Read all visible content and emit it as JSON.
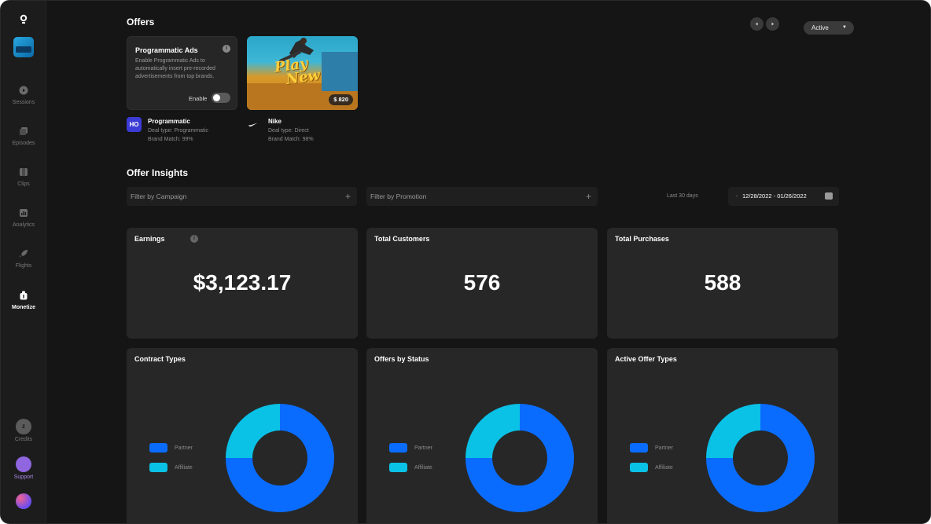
{
  "colors": {
    "partner": "#0a6cff",
    "affiliate": "#0ac1e6",
    "background": "#151515",
    "card": "#272727"
  },
  "sidebar": {
    "items": [
      {
        "label": "Sessions",
        "icon": "play-circle-icon",
        "active": false
      },
      {
        "label": "Episodes",
        "icon": "layers-icon",
        "active": false
      },
      {
        "label": "Clips",
        "icon": "film-icon",
        "active": false
      },
      {
        "label": "Analytics",
        "icon": "bar-chart-icon",
        "active": false
      },
      {
        "label": "Flights",
        "icon": "rocket-icon",
        "active": false
      },
      {
        "label": "Monetize",
        "icon": "money-bag-icon",
        "active": true
      }
    ],
    "credits_label": "Credits",
    "credits_icon_text": "z",
    "support_label": "Support"
  },
  "offers": {
    "title": "Offers",
    "status_select": "Active",
    "programmatic_card": {
      "title": "Programmatic Ads",
      "description": "Enable Programmatic Ads to automatically insert pre-recorded advertisements from top brands.",
      "toggle_label": "Enable",
      "enabled": false
    },
    "nike_card": {
      "image_text_line1": "Play",
      "image_text_line2": "New",
      "price": "$ 820"
    },
    "items": [
      {
        "name": "Programmatic",
        "badge": "HO",
        "deal_type": "Deal type: Programmatic",
        "brand_match": "Brand Match: 99%"
      },
      {
        "name": "Nike",
        "badge": "nike-swoosh-icon",
        "deal_type": "Deal type: Direct",
        "brand_match": "Brand Match: 98%"
      }
    ]
  },
  "insights": {
    "title": "Offer Insights",
    "filter_campaign": "Filter by Campaign",
    "filter_promotion": "Filter by Promotion",
    "range_label": "Last 30 days",
    "date_range": "12/28/2022 - 01/26/2022",
    "stats": [
      {
        "label": "Earnings",
        "value": "$3,123.17"
      },
      {
        "label": "Total Customers",
        "value": "576"
      },
      {
        "label": "Total Purchases",
        "value": "588"
      }
    ]
  },
  "chart_data": [
    {
      "type": "pie",
      "title": "Contract Types",
      "categories": [
        "Partner",
        "Affiliate"
      ],
      "values": [
        75,
        25
      ]
    },
    {
      "type": "pie",
      "title": "Offers by Status",
      "categories": [
        "Partner",
        "Affiliate"
      ],
      "values": [
        75,
        25
      ]
    },
    {
      "type": "pie",
      "title": "Active Offer Types",
      "categories": [
        "Partner",
        "Affiliate"
      ],
      "values": [
        75,
        25
      ]
    }
  ]
}
